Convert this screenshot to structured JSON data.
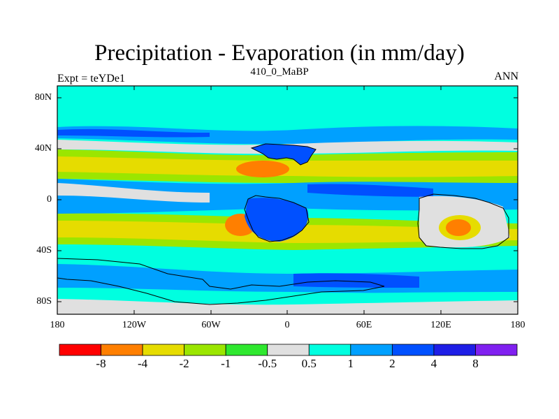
{
  "title": "Precipitation - Evaporation (in mm/day)",
  "subtitle_left": "Expt = teYDe1",
  "subtitle_center": "410_0_MaBP",
  "subtitle_right": "ANN",
  "lat_labels": [
    "80N",
    "40N",
    "0",
    "40S",
    "80S"
  ],
  "lon_labels": [
    "180",
    "120W",
    "60W",
    "0",
    "60E",
    "120E",
    "180"
  ],
  "colorbar": {
    "colors": [
      "#ff0000",
      "#ff7f00",
      "#e6dc00",
      "#9be600",
      "#2fe82f",
      "#e0e0e0",
      "#00ffe0",
      "#00a0ff",
      "#0050ff",
      "#1e1ee6",
      "#8020f0"
    ],
    "labels": [
      "-8",
      "-4",
      "-2",
      "-1",
      "-0.5",
      "0.5",
      "1",
      "2",
      "4",
      "8"
    ]
  },
  "colors": {
    "ocean_bg": "#00ffe0",
    "land": "#e0e0e0"
  }
}
